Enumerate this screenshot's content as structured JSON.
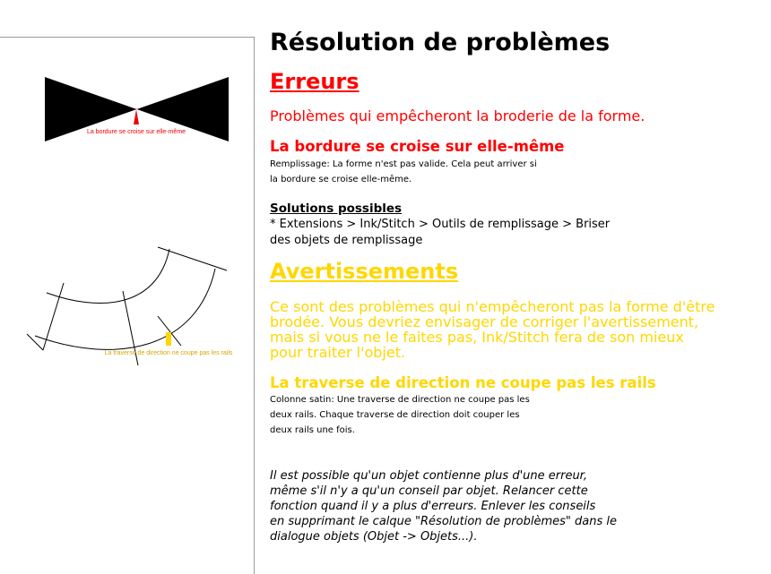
{
  "doc": {
    "title": "Résolution de problèmes",
    "errors": {
      "heading": "Erreurs",
      "intro": "Problèmes qui empêcheront la broderie de la forme.",
      "item_heading": "La bordure se croise sur elle-même",
      "item_desc_1": "Remplissage: La forme n'est pas valide. Cela peut arriver si",
      "item_desc_2": "la bordure se croise elle-même.",
      "solutions_heading": "Solutions possibles",
      "solution_1": "* Extensions > Ink/Stitch > Outils de remplissage > Briser",
      "solution_2": "des objets de remplissage"
    },
    "warnings": {
      "heading": "Avertissements",
      "intro_1": "Ce sont des problèmes qui n'empêcheront pas la forme d'être",
      "intro_2": "brodée. Vous devriez envisager de corriger l'avertissement,",
      "intro_3": "mais si vous ne le faites pas, Ink/Stitch fera de son mieux",
      "intro_4": "pour traiter l'objet.",
      "item_heading": "La traverse de direction ne coupe pas les rails",
      "item_desc_1": "Colonne satin: Une traverse de direction ne coupe pas les",
      "item_desc_2": "deux rails. Chaque traverse de direction doit couper les",
      "item_desc_3": "deux rails une fois."
    },
    "note": {
      "line_1": "Il est possible qu'un objet contienne plus d'une erreur,",
      "line_2": "même s'il n'y a qu'un conseil par objet. Relancer cette",
      "line_3": "fonction quand il y a plus d'erreurs. Enlever les conseils",
      "line_4": "en supprimant le calque \"Résolution de problèmes\" dans le",
      "line_5": "dialogue objets (Objet -> Objets...)."
    }
  },
  "illustrations": {
    "error_label": "La bordure se croise sur elle-même",
    "warning_label": "La traverse de direction ne coupe pas les rails"
  },
  "colors": {
    "error": "#ff0000",
    "warning": "#ffd700",
    "text": "#000000"
  }
}
